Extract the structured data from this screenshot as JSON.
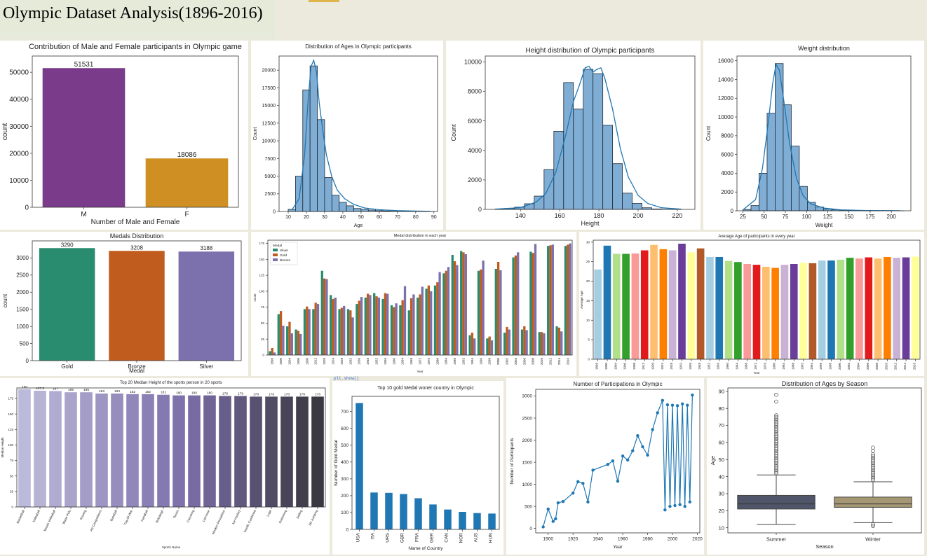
{
  "page_title": "Olympic Dataset Analysis(1896-2016)",
  "stray_code_text": "plt.show()",
  "chart_data": [
    {
      "id": "gender",
      "type": "bar",
      "title": "Contribution of Male and Female participants in Olympic game",
      "xlabel": "Number of Male and Female",
      "ylabel": "count",
      "categories": [
        "M",
        "F"
      ],
      "values": [
        51531,
        18086
      ],
      "data_labels": [
        "51531",
        "18086"
      ],
      "colors": [
        "#7b3b8b",
        "#cf8f23"
      ],
      "ylim": [
        0,
        56000
      ],
      "yticks": [
        0,
        10000,
        20000,
        30000,
        40000,
        50000
      ]
    },
    {
      "id": "age_hist",
      "type": "bar",
      "title": "Distribution of Ages in Olympic participants",
      "xlabel": "Age",
      "ylabel": "Count",
      "bin_start": 10,
      "bin_width": 4,
      "values": [
        300,
        5000,
        17200,
        20600,
        13000,
        4800,
        2300,
        1300,
        800,
        420,
        300,
        200,
        120,
        80,
        40,
        25,
        12,
        6,
        4,
        2
      ],
      "xlim": [
        5,
        92
      ],
      "ylim": [
        0,
        22000
      ],
      "xticks": [
        10,
        20,
        30,
        40,
        50,
        60,
        70,
        80,
        90
      ],
      "yticks": [
        0,
        2500,
        5000,
        7500,
        10000,
        12500,
        15000,
        17500,
        20000
      ],
      "kde": [
        [
          12,
          200
        ],
        [
          16,
          1800
        ],
        [
          19,
          8000
        ],
        [
          21,
          16000
        ],
        [
          22.5,
          20500
        ],
        [
          24,
          21400
        ],
        [
          25.5,
          19800
        ],
        [
          27,
          15500
        ],
        [
          29,
          11500
        ],
        [
          31,
          8000
        ],
        [
          34,
          4900
        ],
        [
          37,
          3000
        ],
        [
          41,
          1800
        ],
        [
          46,
          1000
        ],
        [
          52,
          500
        ],
        [
          60,
          250
        ],
        [
          70,
          120
        ],
        [
          80,
          60
        ],
        [
          88,
          20
        ]
      ]
    },
    {
      "id": "height_hist",
      "type": "bar",
      "title": "Height distribution of Olympic participants",
      "xlabel": "Height",
      "ylabel": "Count",
      "bin_start": 127,
      "bin_width": 5,
      "values": [
        20,
        60,
        150,
        380,
        900,
        2700,
        5300,
        8600,
        6800,
        9500,
        9200,
        5700,
        3100,
        1100,
        400,
        110,
        30,
        10,
        5
      ],
      "xlim": [
        122,
        229
      ],
      "ylim": [
        0,
        10400
      ],
      "xticks": [
        140,
        160,
        180,
        200,
        220
      ],
      "yticks": [
        0,
        2000,
        4000,
        6000,
        8000,
        10000
      ],
      "kde": [
        [
          127,
          15
        ],
        [
          140,
          120
        ],
        [
          148,
          500
        ],
        [
          153,
          1100
        ],
        [
          158,
          2500
        ],
        [
          163,
          5000
        ],
        [
          167,
          7300
        ],
        [
          170,
          8400
        ],
        [
          173,
          9600
        ],
        [
          175,
          9700
        ],
        [
          177,
          9300
        ],
        [
          179,
          9500
        ],
        [
          181,
          9600
        ],
        [
          183,
          8900
        ],
        [
          187,
          6800
        ],
        [
          191,
          4100
        ],
        [
          195,
          2200
        ],
        [
          200,
          950
        ],
        [
          205,
          400
        ],
        [
          212,
          110
        ],
        [
          222,
          20
        ]
      ]
    },
    {
      "id": "weight_hist",
      "type": "bar",
      "title": "Weight distribution",
      "xlabel": "Weight",
      "ylabel": "Count",
      "bin_start": 25,
      "bin_width": 9.5,
      "values": [
        150,
        550,
        4000,
        10400,
        15700,
        11300,
        6900,
        2600,
        900,
        400,
        200,
        120,
        70,
        40,
        20,
        10,
        5,
        3,
        2,
        1
      ],
      "xlim": [
        18,
        223
      ],
      "ylim": [
        0,
        16500
      ],
      "xticks": [
        25,
        50,
        75,
        100,
        125,
        150,
        175,
        200
      ],
      "yticks": [
        0,
        2000,
        4000,
        6000,
        8000,
        10000,
        12000,
        14000,
        16000
      ],
      "kde": [
        [
          25,
          100
        ],
        [
          40,
          1200
        ],
        [
          48,
          4500
        ],
        [
          55,
          9500
        ],
        [
          60,
          13500
        ],
        [
          64,
          15600
        ],
        [
          68,
          15000
        ],
        [
          73,
          11900
        ],
        [
          80,
          7200
        ],
        [
          88,
          3500
        ],
        [
          96,
          1600
        ],
        [
          105,
          750
        ],
        [
          120,
          300
        ],
        [
          140,
          100
        ],
        [
          170,
          30
        ],
        [
          210,
          5
        ]
      ]
    },
    {
      "id": "medals",
      "type": "bar",
      "title": "Medals Distribution",
      "xlabel": "Medal",
      "ylabel": "count",
      "categories": [
        "Gold",
        "Bronze",
        "Silver"
      ],
      "values": [
        3290,
        3208,
        3188
      ],
      "data_labels": [
        "3290",
        "3208",
        "3188"
      ],
      "colors": [
        "#2a8c6e",
        "#c05c1e",
        "#7c70ad"
      ],
      "ylim": [
        0,
        3500
      ],
      "yticks": [
        0,
        500,
        1000,
        1500,
        2000,
        2500,
        3000
      ]
    },
    {
      "id": "medal_year",
      "type": "bar",
      "title": "Medal distribution in each year",
      "xlabel": "Year",
      "ylabel": "count",
      "legend_title": "Medal",
      "categories": [
        "1896",
        "1900",
        "1904",
        "1906",
        "1908",
        "1912",
        "1920",
        "1924",
        "1928",
        "1932",
        "1936",
        "1948",
        "1952",
        "1956",
        "1960",
        "1964",
        "1968",
        "1972",
        "1976",
        "1980",
        "1984",
        "1988",
        "1992",
        "1994",
        "1996",
        "1998",
        "2000",
        "2002",
        "2004",
        "2006",
        "2008",
        "2010",
        "2012",
        "2014",
        "2016"
      ],
      "series": [
        {
          "name": "Silver",
          "color": "#2a8c6e",
          "values": [
            6,
            64,
            45,
            40,
            72,
            72,
            132,
            94,
            72,
            72,
            80,
            90,
            97,
            88,
            78,
            78,
            70,
            90,
            104,
            109,
            128,
            157,
            163,
            31,
            132,
            26,
            135,
            35,
            153,
            40,
            162,
            36,
            171,
            45,
            171
          ]
        },
        {
          "name": "Gold",
          "color": "#c05c1e",
          "values": [
            11,
            69,
            52,
            38,
            76,
            82,
            120,
            88,
            74,
            70,
            85,
            96,
            92,
            97,
            75,
            86,
            89,
            95,
            109,
            114,
            132,
            147,
            161,
            35,
            134,
            29,
            146,
            44,
            156,
            45,
            160,
            36,
            172,
            43,
            173
          ]
        },
        {
          "name": "Bronze",
          "color": "#7c70ad",
          "values": [
            4,
            46,
            34,
            33,
            72,
            80,
            119,
            90,
            77,
            59,
            91,
            94,
            90,
            96,
            81,
            108,
            95,
            107,
            100,
            130,
            138,
            141,
            158,
            26,
            148,
            23,
            133,
            40,
            161,
            39,
            174,
            34,
            173,
            37,
            175
          ]
        }
      ],
      "ylim": [
        0,
        180
      ],
      "yticks": [
        0,
        25,
        50,
        75,
        100,
        125,
        150,
        175
      ]
    },
    {
      "id": "avg_age",
      "type": "bar",
      "title": "Average Age of participants in every year",
      "xlabel": "Year",
      "ylabel": "Average Age",
      "categories": [
        "1896",
        "1900",
        "1904",
        "1906",
        "1908",
        "1912",
        "1920",
        "1924",
        "1928",
        "1932",
        "1936",
        "1948",
        "1952",
        "1956",
        "1960",
        "1964",
        "1968",
        "1972",
        "1976",
        "1980",
        "1984",
        "1988",
        "1992",
        "1994",
        "1996",
        "1998",
        "2000",
        "2002",
        "2004",
        "2006",
        "2008",
        "2010",
        "2012",
        "2014",
        "2016"
      ],
      "values": [
        23.0,
        29.1,
        27.0,
        27.0,
        27.1,
        27.9,
        29.3,
        28.2,
        27.9,
        29.6,
        27.4,
        28.4,
        26.2,
        26.2,
        25.2,
        24.9,
        24.4,
        24.2,
        23.7,
        23.4,
        24.2,
        24.4,
        24.7,
        24.6,
        25.3,
        25.3,
        25.5,
        26.0,
        25.8,
        26.1,
        25.8,
        26.2,
        26.0,
        26.1,
        26.3
      ],
      "colors": [
        "#a6cee3",
        "#1f78b4",
        "#b2df8a",
        "#33a02c",
        "#fb9a99",
        "#e31a1c",
        "#fdbf6f",
        "#ff7f00",
        "#cab2d6",
        "#6a3d9a",
        "#ffff99",
        "#b15928",
        "#a6cee3",
        "#1f78b4",
        "#b2df8a",
        "#33a02c",
        "#fb9a99",
        "#e31a1c",
        "#fdbf6f",
        "#ff7f00",
        "#cab2d6",
        "#6a3d9a",
        "#ffff99",
        "#b15928",
        "#a6cee3",
        "#1f78b4",
        "#b2df8a",
        "#33a02c",
        "#fb9a99",
        "#e31a1c",
        "#fdbf6f",
        "#ff7f00",
        "#cab2d6",
        "#6a3d9a",
        "#ffff99"
      ],
      "ylim": [
        0,
        30.5
      ],
      "yticks": [
        0,
        5,
        10,
        15,
        20,
        25,
        30
      ]
    },
    {
      "id": "sports_height",
      "type": "bar",
      "title": "Top 20 Median Height of the sports person in 20 sports",
      "xlabel": "Sports Name",
      "ylabel": "Median Height",
      "categories": [
        "Basketball",
        "Volleyball",
        "Beach Volleyball",
        "Water Polo",
        "Rowing",
        "Art Competitions",
        "Baseball",
        "Tug-Of-War",
        "Handball",
        "Bobsleigh",
        "Tennis",
        "Canoeing",
        "Lacrosse",
        "Modern Pentathlon",
        "Ice Hockey",
        "Nordic Combined",
        "Luge",
        "Swimming",
        "Sailing",
        "Ski Jumping"
      ],
      "values": [
        190,
        187.5,
        187,
        185,
        185,
        183,
        183,
        182,
        182,
        181,
        180,
        180,
        180,
        179,
        179,
        178,
        178,
        178,
        178,
        178
      ],
      "data_labels": [
        "190",
        "187.5",
        "187",
        "185",
        "185",
        "183",
        "183",
        "182",
        "182",
        "181",
        "180",
        "180",
        "180",
        "179",
        "179",
        "178",
        "178",
        "178",
        "178",
        "178"
      ],
      "ylim": [
        0,
        192
      ],
      "yticks": [
        0,
        25,
        50,
        75,
        100,
        125,
        150,
        175
      ]
    },
    {
      "id": "gold_country",
      "type": "bar",
      "title": "Top 10 gold Medal woner country in Olympic",
      "xlabel": "Name of Country",
      "ylabel": "Number of Gold Medal",
      "categories": [
        "USA",
        "ITA",
        "URS",
        "GBR",
        "FRA",
        "GER",
        "CAN",
        "NOR",
        "AUS",
        "HUN"
      ],
      "values": [
        750,
        219,
        217,
        210,
        185,
        148,
        118,
        104,
        97,
        94
      ],
      "color": "#1f77b4",
      "ylim": [
        0,
        790
      ],
      "yticks": [
        0,
        100,
        200,
        300,
        400,
        500,
        600,
        700
      ]
    },
    {
      "id": "participations",
      "type": "line",
      "title": "Number of Participations in Olympic",
      "xlabel": "Year",
      "ylabel": "Number of Participants",
      "x": [
        1896,
        1900,
        1904,
        1906,
        1908,
        1912,
        1920,
        1924,
        1928,
        1932,
        1936,
        1948,
        1952,
        1956,
        1960,
        1964,
        1968,
        1972,
        1976,
        1980,
        1984,
        1988,
        1992,
        1994,
        1996,
        1998,
        2000,
        2002,
        2004,
        2006,
        2008,
        2010,
        2012,
        2014,
        2016
      ],
      "y": [
        36,
        440,
        160,
        220,
        580,
        610,
        800,
        1060,
        1020,
        600,
        1320,
        1450,
        1530,
        1070,
        1640,
        1550,
        1760,
        2100,
        1850,
        1660,
        2240,
        2620,
        2900,
        420,
        2800,
        500,
        2790,
        520,
        2780,
        540,
        2820,
        500,
        2790,
        600,
        3020
      ],
      "color": "#1f77b4",
      "xlim": [
        1890,
        2022
      ],
      "ylim": [
        -100,
        3150
      ],
      "xticks": [
        1900,
        1920,
        1940,
        1960,
        1980,
        2000,
        2020
      ],
      "yticks": [
        0,
        500,
        1000,
        1500,
        2000,
        2500,
        3000
      ]
    },
    {
      "id": "age_season",
      "type": "box",
      "title": "Distribution of Ages by Season",
      "xlabel": "Season",
      "ylabel": "Age",
      "categories": [
        "Summer",
        "Winter"
      ],
      "boxes": [
        {
          "q1": 21,
          "median": 24,
          "q3": 29,
          "whisker_low": 12,
          "whisker_high": 41,
          "color": "#50556a",
          "outlier_min": 42,
          "outlier_max": 76,
          "outliers_extra": [
            84,
            88
          ]
        },
        {
          "q1": 22,
          "median": 24,
          "q3": 28,
          "whisker_low": 13,
          "whisker_high": 37,
          "color": "#a59674",
          "outlier_min": 38,
          "outlier_max": 53,
          "outliers_extra": [
            55,
            57,
            11,
            12
          ]
        }
      ],
      "ylim": [
        7,
        92
      ],
      "yticks": [
        10,
        20,
        30,
        40,
        50,
        60,
        70,
        80,
        90
      ]
    }
  ]
}
